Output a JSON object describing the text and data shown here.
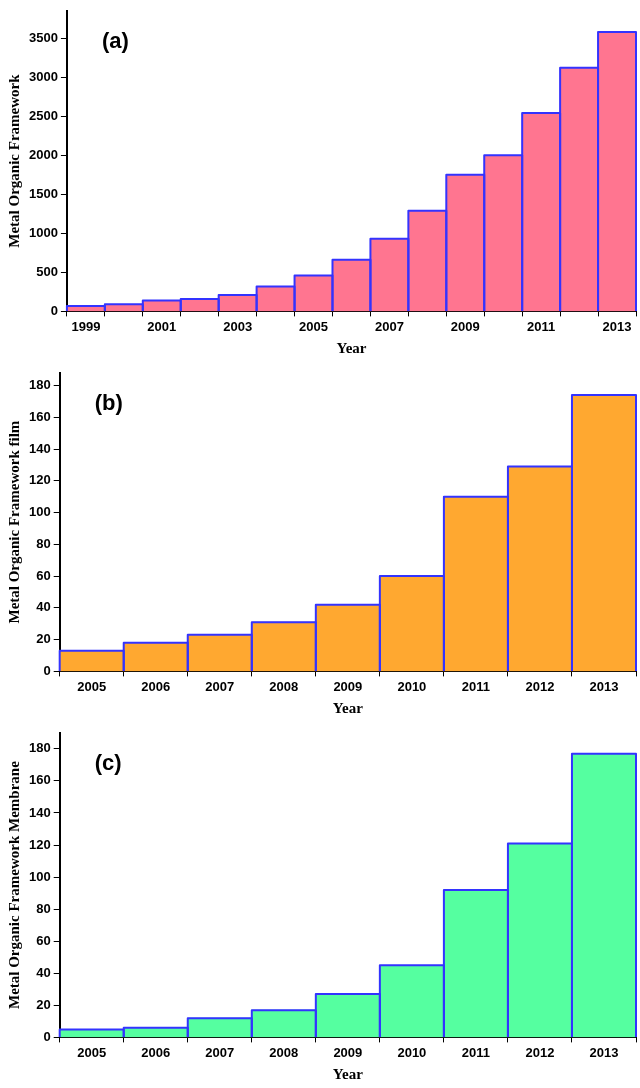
{
  "chart_data": [
    {
      "type": "bar",
      "xlabel": "Year",
      "ylabel": "Metal Organic Framework",
      "annotations": [
        "(a)"
      ],
      "categories": [
        "1999",
        null,
        "2001",
        null,
        "2003",
        null,
        "2005",
        null,
        "2007",
        null,
        "2009",
        null,
        "2011",
        null,
        "2013"
      ],
      "values": [
        70,
        90,
        140,
        160,
        210,
        320,
        460,
        660,
        930,
        1290,
        1750,
        2000,
        2540,
        3120,
        3580
      ],
      "color": "#ff7590",
      "ylim": [
        0,
        3850
      ],
      "yticks": [
        0,
        500,
        1000,
        1500,
        2000,
        2500,
        3000,
        3500
      ],
      "grid": false
    },
    {
      "type": "bar",
      "xlabel": "Year",
      "ylabel": "Metal Organic Framework film",
      "annotations": [
        "(b)"
      ],
      "categories": [
        "2005",
        "2006",
        "2007",
        "2008",
        "2009",
        "2010",
        "2011",
        "2012",
        "2013"
      ],
      "values": [
        13,
        18,
        23,
        31,
        42,
        60,
        110,
        129,
        174
      ],
      "color": "#ffa830",
      "ylim": [
        0,
        188
      ],
      "yticks": [
        0,
        20,
        40,
        60,
        80,
        100,
        120,
        140,
        160,
        180
      ],
      "grid": false
    },
    {
      "type": "bar",
      "xlabel": "Year",
      "ylabel": "Metal Organic Framework Membrane",
      "annotations": [
        "(c)"
      ],
      "categories": [
        "2005",
        "2006",
        "2007",
        "2008",
        "2009",
        "2010",
        "2011",
        "2012",
        "2013"
      ],
      "values": [
        5,
        6,
        12,
        17,
        27,
        45,
        92,
        121,
        177
      ],
      "color": "#55ffa0",
      "ylim": [
        0,
        190
      ],
      "yticks": [
        0,
        20,
        40,
        60,
        80,
        100,
        120,
        140,
        160,
        180
      ],
      "grid": false
    }
  ]
}
